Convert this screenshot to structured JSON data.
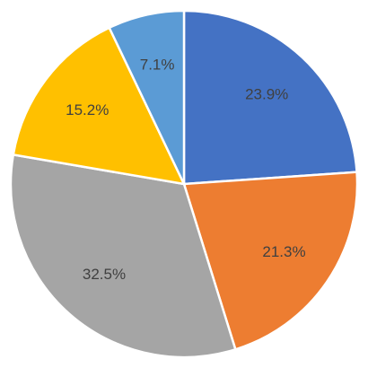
{
  "chart_data": {
    "type": "pie",
    "values": [
      23.9,
      21.3,
      32.5,
      15.2,
      7.1
    ],
    "value_labels": [
      "23.9%",
      "21.3%",
      "32.5%",
      "15.2%",
      "7.1%"
    ],
    "colors": [
      "#4472c4",
      "#ed7d31",
      "#a5a5a5",
      "#ffc000",
      "#5b9bd5"
    ]
  }
}
